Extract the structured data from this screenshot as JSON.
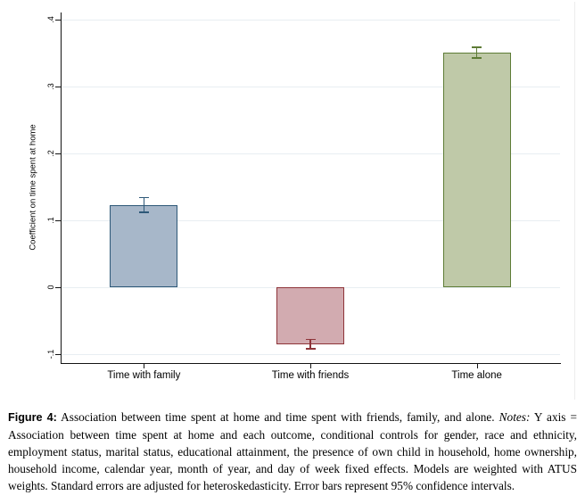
{
  "chart_data": {
    "type": "bar",
    "title": "",
    "xlabel": "",
    "ylabel": "Coefficient on time spent at home",
    "categories": [
      "Time with family",
      "Time with friends",
      "Time alone"
    ],
    "values": [
      0.123,
      -0.085,
      0.351
    ],
    "ci95_half_widths": [
      0.011,
      0.007,
      0.008
    ],
    "yticks": {
      "values": [
        -0.1,
        0,
        0.1,
        0.2,
        0.3,
        0.4
      ],
      "labels": [
        "-.1",
        "0",
        ".1",
        ".2",
        ".3",
        ".4"
      ]
    },
    "ylim": [
      -0.113,
      0.41
    ],
    "grid": true,
    "legend": false,
    "bar_colors": [
      {
        "fill": "#a7b7c9",
        "edge": "#2e5878"
      },
      {
        "fill": "#d2abb0",
        "edge": "#8e3439"
      },
      {
        "fill": "#bfc9a8",
        "edge": "#5e7c36"
      }
    ],
    "gridline_color": "#e8eef2",
    "axis_color": "#141414"
  },
  "caption": {
    "figure_label": "Figure 4:",
    "main_text": "Association between time spent at home and time spent with friends, family, and alone.",
    "notes_label": "Notes:",
    "notes_text": "Y axis = Association between time spent at home and each outcome, conditional controls for gender, race and ethnicity, employment status, marital status, educational attainment, the presence of own child in household, home ownership, household income, calendar year, month of year, and day of week fixed effects. Models are weighted with ATUS weights. Standard errors are adjusted for heteroskedasticity. Error bars represent 95% confidence intervals."
  }
}
